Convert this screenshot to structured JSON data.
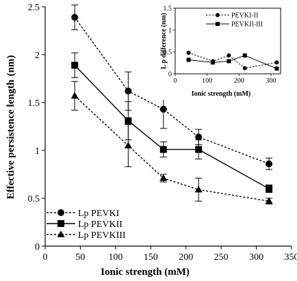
{
  "chart_data": [
    {
      "type": "line",
      "title": "",
      "xlabel": "Ionic strength (mM)",
      "ylabel": "Effective persistence length",
      "ylabel_unit": "(nm)",
      "xlim": [
        0,
        350
      ],
      "ylim": [
        0,
        2.5
      ],
      "x_ticks": [
        "0",
        "50",
        "100",
        "150",
        "200",
        "250",
        "300",
        "350"
      ],
      "y_ticks": [
        "0",
        "0.5",
        "1",
        "1.5",
        "2",
        "2.5"
      ],
      "grid": false,
      "legend_position": "bottom-left",
      "series": [
        {
          "name": "Lp PEVKI",
          "marker": "circle",
          "line": "dashed",
          "points": [
            {
              "x": 42,
              "y": 2.39,
              "err": 0.13
            },
            {
              "x": 118,
              "y": 1.62,
              "err": 0.2
            },
            {
              "x": 168,
              "y": 1.43,
              "err": 0.2
            },
            {
              "x": 218,
              "y": 1.14,
              "err": 0.08
            },
            {
              "x": 318,
              "y": 0.86,
              "err": 0.06
            }
          ]
        },
        {
          "name": "Lp PEVKII",
          "marker": "square",
          "line": "solid",
          "points": [
            {
              "x": 42,
              "y": 1.89,
              "err": 0.13
            },
            {
              "x": 118,
              "y": 1.31,
              "err": 0.2
            },
            {
              "x": 168,
              "y": 1.01,
              "err": 0.08
            },
            {
              "x": 218,
              "y": 1.01,
              "err": 0.1
            },
            {
              "x": 318,
              "y": 0.6,
              "err": 0.04
            }
          ]
        },
        {
          "name": "Lp PEVKIII",
          "marker": "triangle",
          "line": "dashed",
          "points": [
            {
              "x": 42,
              "y": 1.57,
              "err": 0.15
            },
            {
              "x": 118,
              "y": 1.05,
              "err": 0.22
            },
            {
              "x": 168,
              "y": 0.71,
              "err": 0.04
            },
            {
              "x": 218,
              "y": 0.59,
              "err": 0.12
            },
            {
              "x": 318,
              "y": 0.47,
              "err": 0.03
            }
          ]
        }
      ]
    },
    {
      "type": "line",
      "title": "",
      "xlabel": "Ionic strength (mM)",
      "ylabel": "L p difference (nm)",
      "xlim": [
        0,
        330
      ],
      "ylim": [
        0,
        1.5
      ],
      "x_ticks": [
        "0",
        "100",
        "200",
        "300"
      ],
      "y_ticks": [
        "0",
        "0.5",
        "1",
        "1.5"
      ],
      "grid": false,
      "legend_position": "top-right",
      "series": [
        {
          "name": "PEVKI-II",
          "marker": "circle",
          "line": "dashed",
          "points": [
            {
              "x": 42,
              "y": 0.48
            },
            {
              "x": 118,
              "y": 0.29
            },
            {
              "x": 168,
              "y": 0.42
            },
            {
              "x": 218,
              "y": 0.13
            },
            {
              "x": 318,
              "y": 0.26
            }
          ]
        },
        {
          "name": "PEVKII-III",
          "marker": "square",
          "line": "solid",
          "points": [
            {
              "x": 42,
              "y": 0.32
            },
            {
              "x": 118,
              "y": 0.26
            },
            {
              "x": 168,
              "y": 0.29
            },
            {
              "x": 218,
              "y": 0.42
            },
            {
              "x": 318,
              "y": 0.12
            }
          ]
        }
      ]
    }
  ]
}
